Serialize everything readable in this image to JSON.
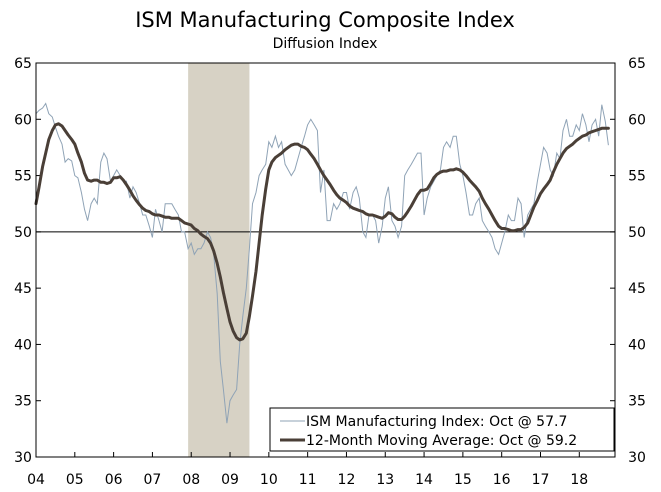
{
  "chart_data": {
    "type": "line",
    "title": "ISM Manufacturing Composite Index",
    "subtitle": "Diffusion Index",
    "xlabel": "",
    "ylabel": "",
    "xlim": [
      2004.0,
      2018.92
    ],
    "ylim": [
      30,
      65
    ],
    "y_ticks": [
      30,
      35,
      40,
      45,
      50,
      55,
      60,
      65
    ],
    "x_ticks": [
      {
        "label": "04",
        "value": 2004
      },
      {
        "label": "05",
        "value": 2005
      },
      {
        "label": "06",
        "value": 2006
      },
      {
        "label": "07",
        "value": 2007
      },
      {
        "label": "08",
        "value": 2008
      },
      {
        "label": "09",
        "value": 2009
      },
      {
        "label": "10",
        "value": 2010
      },
      {
        "label": "11",
        "value": 2011
      },
      {
        "label": "12",
        "value": 2012
      },
      {
        "label": "13",
        "value": 2013
      },
      {
        "label": "14",
        "value": 2014
      },
      {
        "label": "15",
        "value": 2015
      },
      {
        "label": "16",
        "value": 2016
      },
      {
        "label": "17",
        "value": 2017
      },
      {
        "label": "18",
        "value": 2018
      }
    ],
    "reference_line": 50,
    "recession": {
      "start": 2007.92,
      "end": 2009.5
    },
    "legend_position": "bottom-right",
    "colors": {
      "ism": "#8fa3b6",
      "moving_average": "#4a3f37",
      "recession": "#d7d2c5",
      "axis": "#000000"
    },
    "series": [
      {
        "name": "ISM Manufacturing Index: Oct @ 57.7",
        "x": [
          2004.0,
          2004.08,
          2004.17,
          2004.25,
          2004.33,
          2004.42,
          2004.5,
          2004.58,
          2004.67,
          2004.75,
          2004.83,
          2004.92,
          2005.0,
          2005.08,
          2005.17,
          2005.25,
          2005.33,
          2005.42,
          2005.5,
          2005.58,
          2005.67,
          2005.75,
          2005.83,
          2005.92,
          2006.0,
          2006.08,
          2006.17,
          2006.25,
          2006.33,
          2006.42,
          2006.5,
          2006.58,
          2006.67,
          2006.75,
          2006.83,
          2006.92,
          2007.0,
          2007.08,
          2007.17,
          2007.25,
          2007.33,
          2007.42,
          2007.5,
          2007.58,
          2007.67,
          2007.75,
          2007.83,
          2007.92,
          2008.0,
          2008.08,
          2008.17,
          2008.25,
          2008.33,
          2008.42,
          2008.5,
          2008.58,
          2008.67,
          2008.75,
          2008.83,
          2008.92,
          2009.0,
          2009.08,
          2009.17,
          2009.25,
          2009.33,
          2009.42,
          2009.5,
          2009.58,
          2009.67,
          2009.75,
          2009.83,
          2009.92,
          2010.0,
          2010.08,
          2010.17,
          2010.25,
          2010.33,
          2010.42,
          2010.5,
          2010.58,
          2010.67,
          2010.75,
          2010.83,
          2010.92,
          2011.0,
          2011.08,
          2011.17,
          2011.25,
          2011.33,
          2011.42,
          2011.5,
          2011.58,
          2011.67,
          2011.75,
          2011.83,
          2011.92,
          2012.0,
          2012.08,
          2012.17,
          2012.25,
          2012.33,
          2012.42,
          2012.5,
          2012.58,
          2012.67,
          2012.75,
          2012.83,
          2012.92,
          2013.0,
          2013.08,
          2013.17,
          2013.25,
          2013.33,
          2013.42,
          2013.5,
          2013.58,
          2013.67,
          2013.75,
          2013.83,
          2013.92,
          2014.0,
          2014.08,
          2014.17,
          2014.25,
          2014.33,
          2014.42,
          2014.5,
          2014.58,
          2014.67,
          2014.75,
          2014.83,
          2014.92,
          2015.0,
          2015.08,
          2015.17,
          2015.25,
          2015.33,
          2015.42,
          2015.5,
          2015.58,
          2015.67,
          2015.75,
          2015.83,
          2015.92,
          2016.0,
          2016.08,
          2016.17,
          2016.25,
          2016.33,
          2016.42,
          2016.5,
          2016.58,
          2016.67,
          2016.75,
          2016.83,
          2016.92,
          2017.0,
          2017.08,
          2017.17,
          2017.25,
          2017.33,
          2017.42,
          2017.5,
          2017.58,
          2017.67,
          2017.75,
          2017.83,
          2017.92,
          2018.0,
          2018.08,
          2018.17,
          2018.25,
          2018.33,
          2018.42,
          2018.5,
          2018.58,
          2018.67,
          2018.75
        ],
        "values": [
          60.5,
          60.8,
          61.0,
          61.4,
          60.5,
          60.2,
          59.3,
          58.5,
          57.8,
          56.2,
          56.5,
          56.3,
          55.0,
          54.8,
          53.5,
          52.0,
          51.0,
          52.5,
          53.0,
          52.5,
          56.2,
          57.0,
          56.5,
          54.5,
          55.0,
          55.5,
          55.0,
          54.5,
          54.5,
          53.0,
          54.0,
          53.5,
          52.5,
          51.5,
          51.5,
          50.5,
          49.5,
          52.0,
          51.0,
          50.0,
          52.5,
          52.5,
          52.5,
          52.0,
          51.5,
          50.0,
          50.0,
          48.5,
          49.0,
          48.0,
          48.5,
          48.5,
          49.0,
          50.0,
          49.5,
          48.0,
          44.5,
          38.5,
          36.0,
          33.0,
          35.0,
          35.5,
          36.0,
          40.0,
          42.5,
          45.0,
          48.5,
          52.5,
          53.5,
          55.0,
          55.5,
          56.0,
          58.0,
          57.5,
          58.5,
          57.5,
          58.0,
          56.0,
          55.5,
          55.0,
          55.5,
          56.5,
          57.5,
          58.5,
          59.5,
          60.0,
          59.5,
          59.0,
          53.5,
          55.5,
          51.0,
          51.0,
          52.5,
          52.0,
          52.5,
          53.5,
          53.5,
          52.0,
          53.5,
          54.0,
          53.0,
          50.0,
          49.5,
          51.5,
          51.5,
          51.0,
          49.0,
          50.5,
          53.0,
          54.0,
          51.0,
          50.5,
          49.5,
          50.5,
          55.0,
          55.5,
          56.0,
          56.5,
          57.0,
          57.0,
          51.5,
          53.0,
          54.0,
          54.5,
          55.0,
          55.5,
          57.5,
          58.0,
          57.5,
          58.5,
          58.5,
          56.0,
          55.0,
          53.5,
          51.5,
          51.5,
          52.5,
          53.0,
          51.0,
          50.5,
          50.0,
          49.5,
          48.5,
          48.0,
          49.0,
          50.0,
          51.5,
          51.0,
          51.0,
          53.0,
          52.5,
          49.5,
          51.5,
          52.0,
          52.5,
          54.5,
          56.0,
          57.5,
          57.0,
          55.5,
          55.0,
          57.0,
          56.5,
          59.0,
          60.0,
          58.5,
          58.5,
          59.5,
          59.0,
          60.5,
          59.5,
          58.0,
          59.5,
          60.0,
          58.5,
          61.3,
          59.8,
          57.7
        ]
      },
      {
        "name": "12-Month Moving Average: Oct @ 59.2",
        "x": [
          2004.0,
          2004.08,
          2004.17,
          2004.25,
          2004.33,
          2004.42,
          2004.5,
          2004.58,
          2004.67,
          2004.75,
          2004.83,
          2004.92,
          2005.0,
          2005.08,
          2005.17,
          2005.25,
          2005.33,
          2005.42,
          2005.5,
          2005.58,
          2005.67,
          2005.75,
          2005.83,
          2005.92,
          2006.0,
          2006.08,
          2006.17,
          2006.25,
          2006.33,
          2006.42,
          2006.5,
          2006.58,
          2006.67,
          2006.75,
          2006.83,
          2006.92,
          2007.0,
          2007.08,
          2007.17,
          2007.25,
          2007.33,
          2007.42,
          2007.5,
          2007.58,
          2007.67,
          2007.75,
          2007.83,
          2007.92,
          2008.0,
          2008.08,
          2008.17,
          2008.25,
          2008.33,
          2008.42,
          2008.5,
          2008.58,
          2008.67,
          2008.75,
          2008.83,
          2008.92,
          2009.0,
          2009.08,
          2009.17,
          2009.25,
          2009.33,
          2009.42,
          2009.5,
          2009.58,
          2009.67,
          2009.75,
          2009.83,
          2009.92,
          2010.0,
          2010.08,
          2010.17,
          2010.25,
          2010.33,
          2010.42,
          2010.5,
          2010.58,
          2010.67,
          2010.75,
          2010.83,
          2010.92,
          2011.0,
          2011.08,
          2011.17,
          2011.25,
          2011.33,
          2011.42,
          2011.5,
          2011.58,
          2011.67,
          2011.75,
          2011.83,
          2011.92,
          2012.0,
          2012.08,
          2012.17,
          2012.25,
          2012.33,
          2012.42,
          2012.5,
          2012.58,
          2012.67,
          2012.75,
          2012.83,
          2012.92,
          2013.0,
          2013.08,
          2013.17,
          2013.25,
          2013.33,
          2013.42,
          2013.5,
          2013.58,
          2013.67,
          2013.75,
          2013.83,
          2013.92,
          2014.0,
          2014.08,
          2014.17,
          2014.25,
          2014.33,
          2014.42,
          2014.5,
          2014.58,
          2014.67,
          2014.75,
          2014.83,
          2014.92,
          2015.0,
          2015.08,
          2015.17,
          2015.25,
          2015.33,
          2015.42,
          2015.5,
          2015.58,
          2015.67,
          2015.75,
          2015.83,
          2015.92,
          2016.0,
          2016.08,
          2016.17,
          2016.25,
          2016.33,
          2016.42,
          2016.5,
          2016.58,
          2016.67,
          2016.75,
          2016.83,
          2016.92,
          2017.0,
          2017.08,
          2017.17,
          2017.25,
          2017.33,
          2017.42,
          2017.5,
          2017.58,
          2017.67,
          2017.75,
          2017.83,
          2017.92,
          2018.0,
          2018.08,
          2018.17,
          2018.25,
          2018.33,
          2018.42,
          2018.5,
          2018.58,
          2018.67,
          2018.75
        ],
        "values": [
          52.5,
          54.0,
          55.8,
          57.0,
          58.2,
          59.0,
          59.5,
          59.6,
          59.4,
          59.0,
          58.6,
          58.2,
          57.8,
          57.0,
          56.2,
          55.2,
          54.6,
          54.5,
          54.6,
          54.6,
          54.4,
          54.4,
          54.3,
          54.4,
          54.8,
          54.8,
          54.9,
          54.6,
          54.2,
          53.7,
          53.2,
          52.8,
          52.4,
          52.1,
          51.9,
          51.8,
          51.6,
          51.5,
          51.5,
          51.4,
          51.3,
          51.3,
          51.2,
          51.2,
          51.2,
          51.0,
          50.8,
          50.7,
          50.6,
          50.3,
          50.1,
          49.8,
          49.6,
          49.4,
          49.0,
          48.3,
          47.2,
          46.0,
          44.6,
          43.2,
          42.0,
          41.2,
          40.6,
          40.4,
          40.5,
          41.0,
          42.5,
          44.3,
          46.5,
          49.0,
          51.5,
          53.8,
          55.5,
          56.2,
          56.6,
          56.8,
          57.0,
          57.3,
          57.5,
          57.7,
          57.8,
          57.8,
          57.6,
          57.5,
          57.3,
          56.9,
          56.5,
          56.0,
          55.5,
          55.0,
          54.6,
          54.2,
          53.7,
          53.3,
          53.0,
          52.8,
          52.6,
          52.3,
          52.1,
          52.0,
          51.9,
          51.8,
          51.6,
          51.5,
          51.5,
          51.4,
          51.3,
          51.2,
          51.4,
          51.7,
          51.6,
          51.3,
          51.1,
          51.1,
          51.4,
          51.8,
          52.3,
          52.8,
          53.3,
          53.7,
          53.7,
          53.8,
          54.3,
          54.8,
          55.1,
          55.3,
          55.4,
          55.4,
          55.5,
          55.5,
          55.6,
          55.5,
          55.3,
          55.0,
          54.6,
          54.3,
          54.0,
          53.6,
          53.0,
          52.5,
          52.0,
          51.5,
          51.0,
          50.5,
          50.3,
          50.3,
          50.2,
          50.1,
          50.1,
          50.2,
          50.2,
          50.4,
          50.8,
          51.5,
          52.2,
          52.8,
          53.4,
          53.8,
          54.2,
          54.6,
          55.3,
          56.0,
          56.5,
          57.0,
          57.4,
          57.6,
          57.8,
          58.1,
          58.3,
          58.5,
          58.6,
          58.8,
          58.9,
          59.0,
          59.1,
          59.2,
          59.2,
          59.2
        ]
      }
    ]
  }
}
